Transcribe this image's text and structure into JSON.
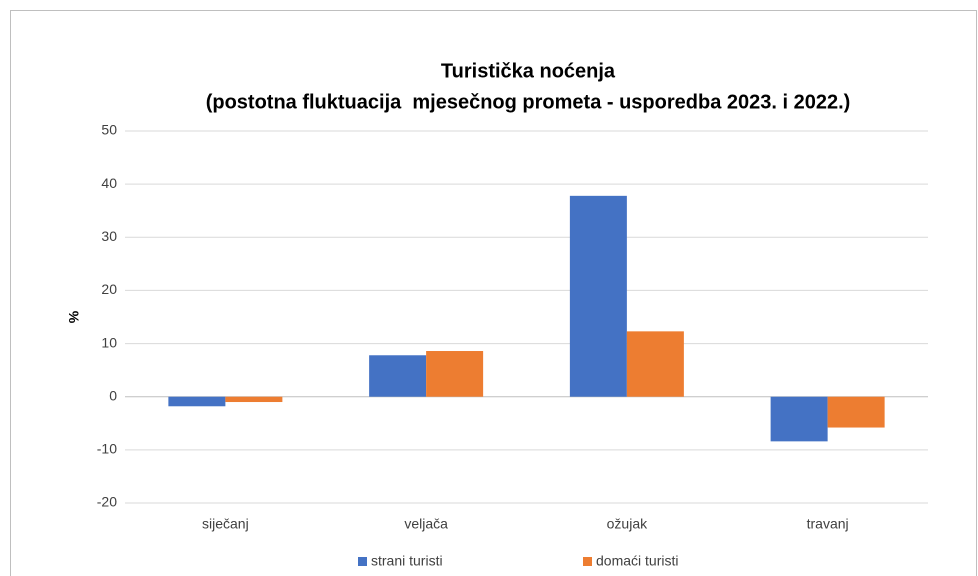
{
  "chart_data": {
    "type": "bar",
    "title": "Turistička noćenja",
    "subtitle": "(postotna fluktuacija  mjesečnog prometa - usporedba 2023. i 2022.)",
    "y_label": "%",
    "categories": [
      "siječanj",
      "veljača",
      "ožujak",
      "travanj"
    ],
    "series": [
      {
        "name": "strani turisti",
        "color": "#4472c4",
        "values": [
          -1.8,
          7.8,
          37.8,
          -8.4
        ]
      },
      {
        "name": "domaći turisti",
        "color": "#ed7d31",
        "values": [
          -1.0,
          8.6,
          12.3,
          -5.8
        ]
      }
    ],
    "ylim": [
      -20,
      50
    ],
    "yticks": [
      -20,
      -10,
      0,
      10,
      20,
      30,
      40,
      50
    ],
    "grid": true,
    "legend": "bottom"
  }
}
